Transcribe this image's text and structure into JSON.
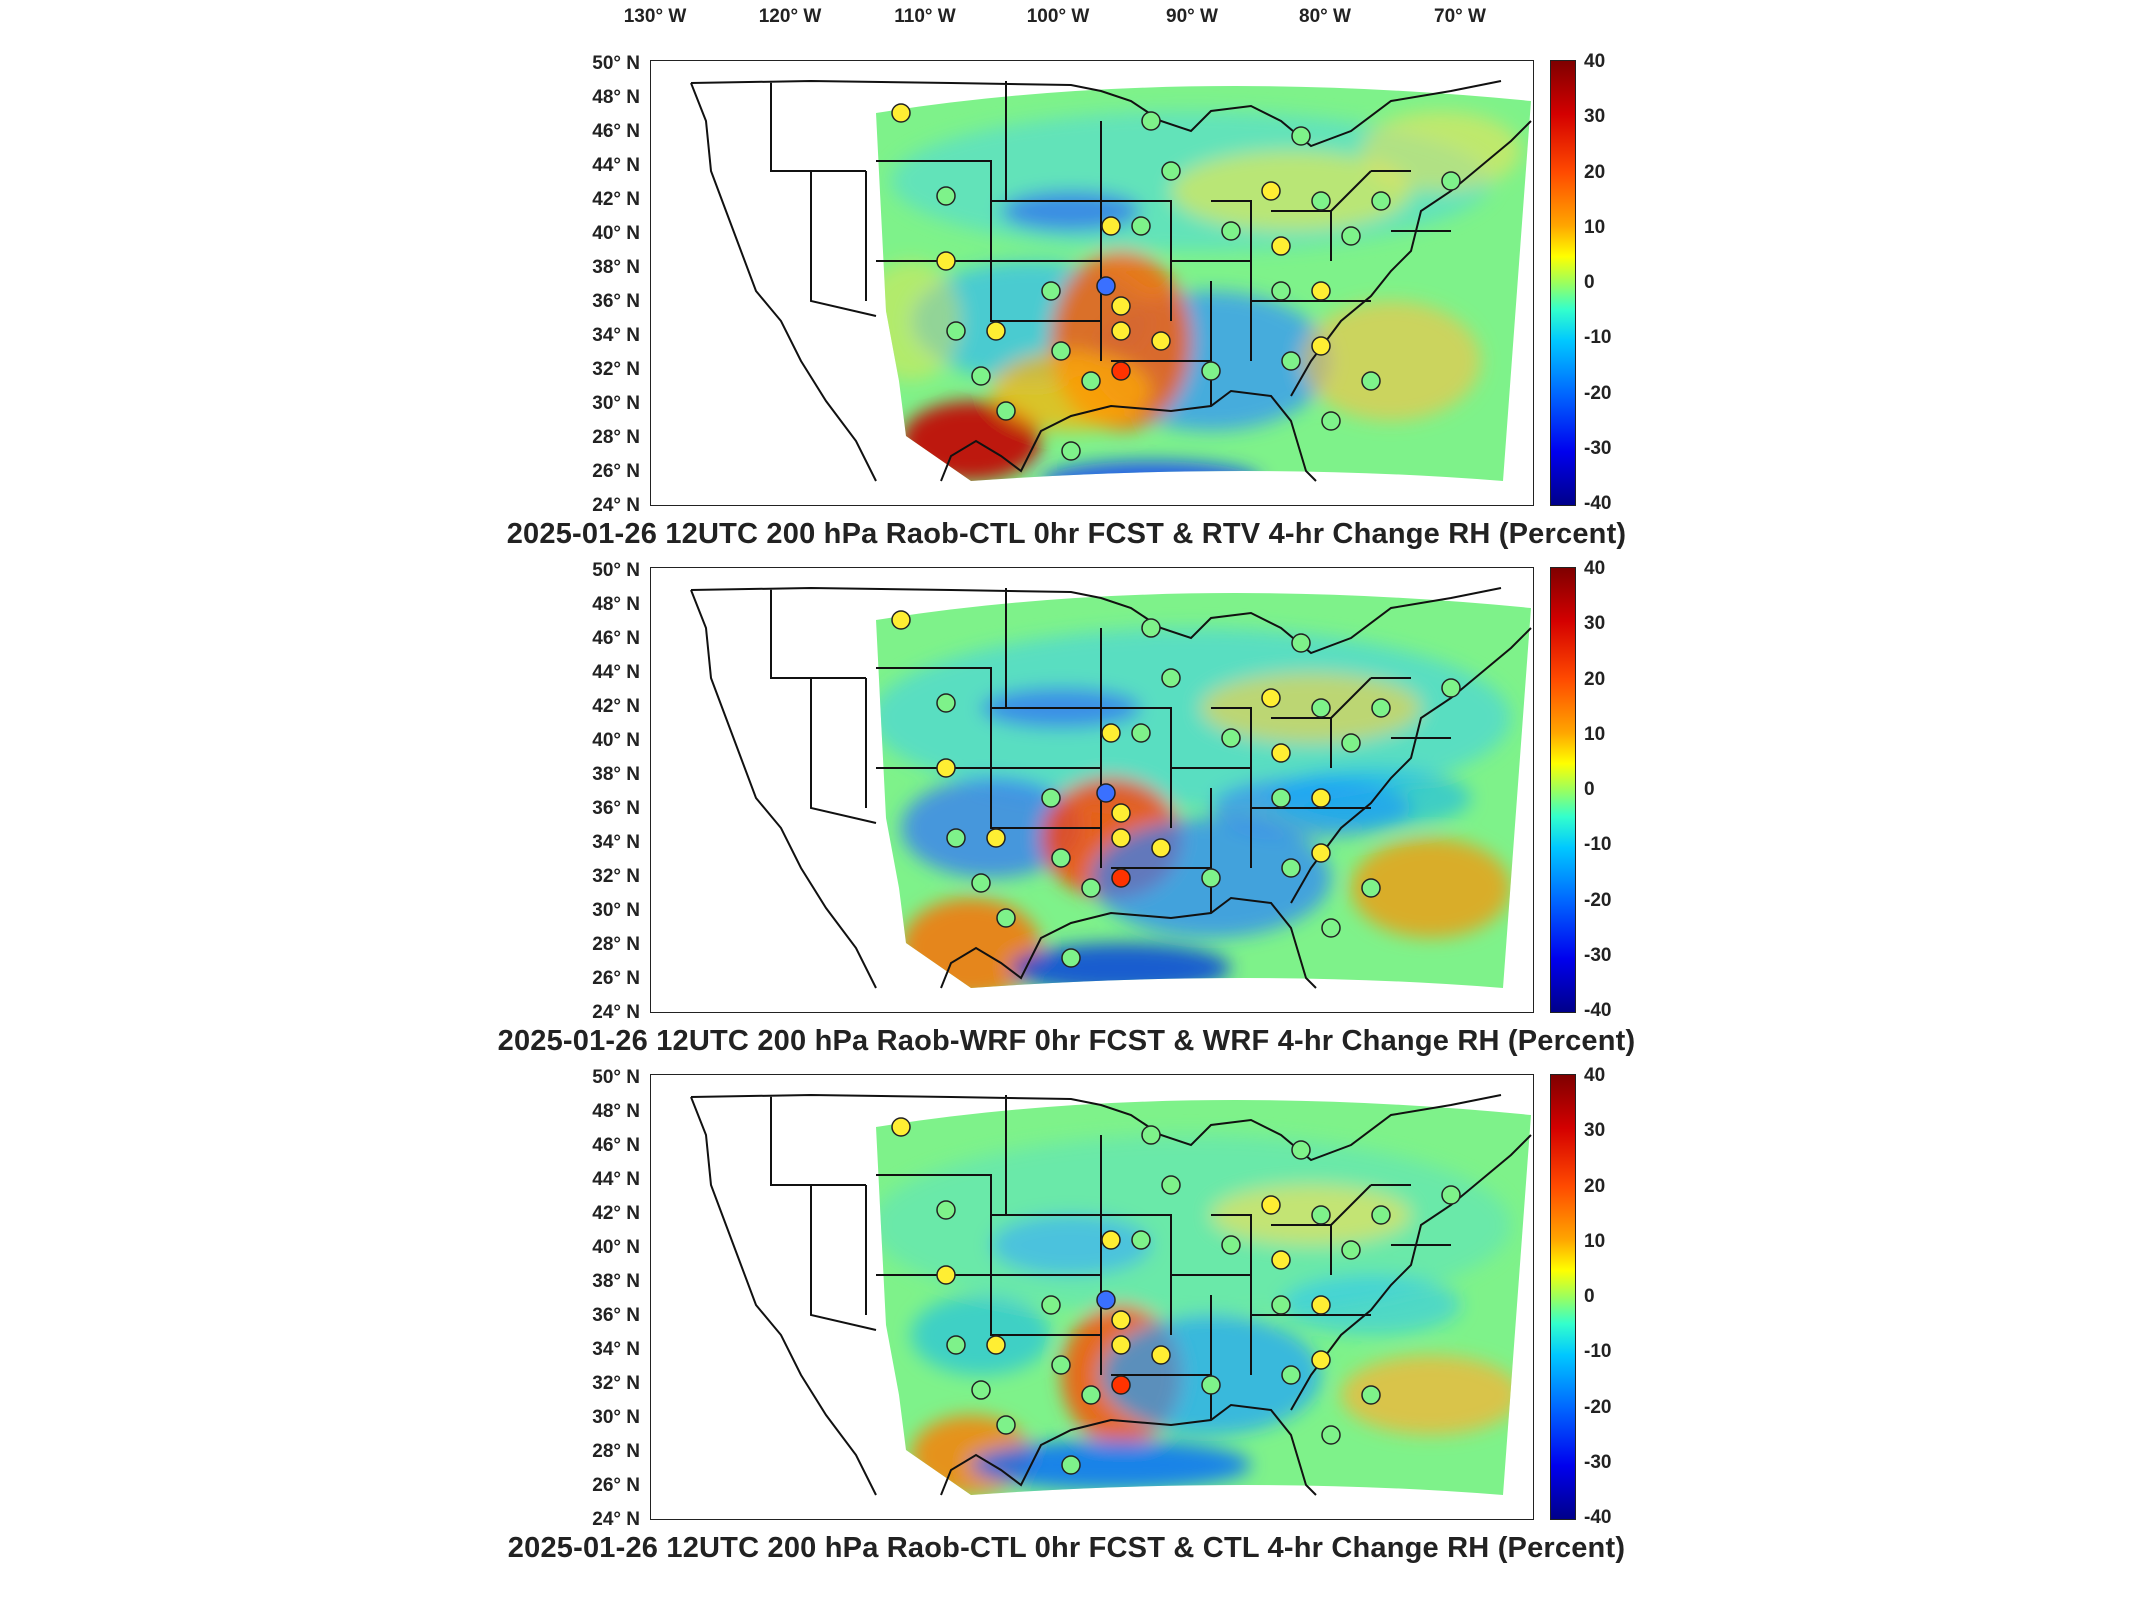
{
  "longitude_ticks": [
    "130° W",
    "120° W",
    "110° W",
    "100° W",
    "90° W",
    "80° W",
    "70° W"
  ],
  "latitude_ticks": [
    "50° N",
    "48° N",
    "46° N",
    "44° N",
    "42° N",
    "40° N",
    "38° N",
    "36° N",
    "34° N",
    "32° N",
    "30° N",
    "28° N",
    "26° N",
    "24° N"
  ],
  "colorbar_ticks": [
    "40",
    "30",
    "20",
    "10",
    "0",
    "-10",
    "-20",
    "-30",
    "-40"
  ],
  "colorbar_range": [
    -40,
    40
  ],
  "panels": [
    {
      "title": "2025-01-26 12UTC 200 hPa Raob-CTL 0hr FCST & RTV 4-hr Change RH (Percent)"
    },
    {
      "title": "2025-01-26 12UTC 200 hPa Raob-WRF 0hr FCST & WRF 4-hr Change RH (Percent)"
    },
    {
      "title": "2025-01-26 12UTC 200 hPa Raob-CTL 0hr FCST & CTL 4-hr Change RH (Percent)"
    }
  ],
  "colors": {
    "field_base": "#80f080",
    "warm": "#ff3300",
    "cool": "#0055ff"
  }
}
